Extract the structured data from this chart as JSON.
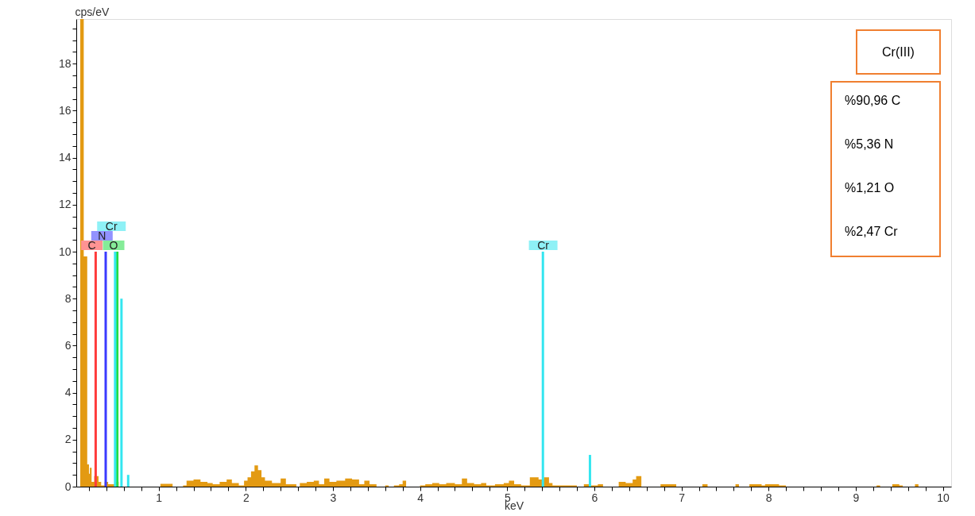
{
  "chart_data": {
    "type": "area",
    "title": "Cr(III)",
    "xlabel": "keV",
    "ylabel": "cps/eV",
    "xlim": [
      0.1,
      10.05
    ],
    "ylim": [
      0,
      19.9
    ],
    "xticks": [
      {
        "value": 0.2,
        "label": null
      },
      {
        "value": 0.4,
        "label": null
      },
      {
        "value": 0.6,
        "label": null
      },
      {
        "value": 0.8,
        "label": null
      },
      1,
      {
        "value": 1.2,
        "label": null
      },
      {
        "value": 1.4,
        "label": null
      },
      {
        "value": 1.6,
        "label": null
      },
      {
        "value": 1.8,
        "label": null
      },
      2,
      {
        "value": 2.2,
        "label": null
      },
      {
        "value": 2.4,
        "label": null
      },
      {
        "value": 2.6,
        "label": null
      },
      {
        "value": 2.8,
        "label": null
      },
      3,
      {
        "value": 3.2,
        "label": null
      },
      {
        "value": 3.4,
        "label": null
      },
      {
        "value": 3.6,
        "label": null
      },
      {
        "value": 3.8,
        "label": null
      },
      4,
      {
        "value": 4.2,
        "label": null
      },
      {
        "value": 4.4,
        "label": null
      },
      {
        "value": 4.6,
        "label": null
      },
      {
        "value": 4.8,
        "label": null
      },
      5,
      {
        "value": 5.2,
        "label": null
      },
      {
        "value": 5.4,
        "label": null
      },
      {
        "value": 5.6,
        "label": null
      },
      {
        "value": 5.8,
        "label": null
      },
      6,
      {
        "value": 6.2,
        "label": null
      },
      {
        "value": 6.4,
        "label": null
      },
      {
        "value": 6.6,
        "label": null
      },
      {
        "value": 6.8,
        "label": null
      },
      7,
      {
        "value": 7.2,
        "label": null
      },
      {
        "value": 7.4,
        "label": null
      },
      {
        "value": 7.6,
        "label": null
      },
      {
        "value": 7.8,
        "label": null
      },
      8,
      {
        "value": 8.2,
        "label": null
      },
      {
        "value": 8.4,
        "label": null
      },
      {
        "value": 8.6,
        "label": null
      },
      {
        "value": 8.8,
        "label": null
      },
      9,
      {
        "value": 9.2,
        "label": null
      },
      {
        "value": 9.4,
        "label": null
      },
      {
        "value": 9.6,
        "label": null
      },
      {
        "value": 9.8,
        "label": null
      },
      10
    ],
    "yticks": [
      0,
      {
        "value": 0.5,
        "label": null
      },
      {
        "value": 1,
        "label": null
      },
      {
        "value": 1.5,
        "label": null
      },
      2,
      {
        "value": 2.5,
        "label": null
      },
      {
        "value": 3,
        "label": null
      },
      {
        "value": 3.5,
        "label": null
      },
      4,
      {
        "value": 4.5,
        "label": null
      },
      {
        "value": 5,
        "label": null
      },
      {
        "value": 5.5,
        "label": null
      },
      6,
      {
        "value": 6.5,
        "label": null
      },
      {
        "value": 7,
        "label": null
      },
      {
        "value": 7.5,
        "label": null
      },
      8,
      {
        "value": 8.5,
        "label": null
      },
      {
        "value": 9,
        "label": null
      },
      {
        "value": 9.5,
        "label": null
      },
      10,
      {
        "value": 10.5,
        "label": null
      },
      {
        "value": 11,
        "label": null
      },
      {
        "value": 11.5,
        "label": null
      },
      12,
      {
        "value": 12.5,
        "label": null
      },
      {
        "value": 13,
        "label": null
      },
      {
        "value": 13.5,
        "label": null
      },
      14,
      {
        "value": 14.5,
        "label": null
      },
      {
        "value": 15,
        "label": null
      },
      {
        "value": 15.5,
        "label": null
      },
      16,
      {
        "value": 16.5,
        "label": null
      },
      {
        "value": 17,
        "label": null
      },
      {
        "value": 17.5,
        "label": null
      },
      18,
      {
        "value": 18.5,
        "label": null
      },
      {
        "value": 19,
        "label": null
      },
      {
        "value": 19.5,
        "label": null
      }
    ],
    "grid": false,
    "series": [
      {
        "color": "#e39a12",
        "x": [
          0.1,
          0.14,
          0.18,
          0.2,
          0.21,
          0.23,
          0.26,
          0.31,
          0.34,
          0.38,
          0.42,
          0.46,
          0.5,
          0.54,
          1.02,
          1.16,
          1.28,
          1.32,
          1.4,
          1.48,
          1.56,
          1.62,
          1.7,
          1.78,
          1.84,
          1.92,
          1.98,
          2.02,
          2.06,
          2.1,
          2.14,
          2.18,
          2.22,
          2.3,
          2.4,
          2.46,
          2.58,
          2.62,
          2.7,
          2.78,
          2.84,
          2.9,
          2.96,
          3.04,
          3.14,
          3.22,
          3.3,
          3.36,
          3.42,
          3.5,
          3.6,
          3.64,
          3.7,
          3.76,
          3.8,
          3.84,
          4.0,
          4.06,
          4.14,
          4.22,
          4.3,
          4.4,
          4.48,
          4.54,
          4.62,
          4.7,
          4.76,
          4.86,
          4.96,
          5.02,
          5.08,
          5.16,
          5.26,
          5.36,
          5.42,
          5.48,
          5.52,
          5.62,
          5.7,
          5.8,
          5.88,
          5.96,
          6.04,
          6.1,
          6.28,
          6.36,
          6.44,
          6.48,
          6.54,
          6.76,
          6.94,
          7.24,
          7.3,
          7.62,
          7.66,
          7.78,
          7.92,
          7.96,
          8.12,
          8.2,
          9.24,
          9.28,
          9.42,
          9.5,
          9.54,
          9.68,
          9.72,
          10.05
        ],
        "values": [
          19.9,
          9.8,
          0.95,
          0.55,
          0.8,
          0.2,
          0.45,
          0.2,
          0.05,
          0.2,
          0.1,
          0.1,
          0.2,
          0,
          0.12,
          0,
          0.05,
          0.25,
          0.3,
          0.2,
          0.15,
          0.1,
          0.2,
          0.3,
          0.15,
          0.05,
          0.25,
          0.4,
          0.65,
          0.9,
          0.7,
          0.4,
          0.25,
          0.15,
          0.35,
          0.1,
          0,
          0.15,
          0.2,
          0.25,
          0.1,
          0.35,
          0.2,
          0.25,
          0.35,
          0.3,
          0.1,
          0.25,
          0.1,
          0,
          0.05,
          0,
          0.05,
          0.1,
          0.25,
          0,
          0.05,
          0.1,
          0.15,
          0.1,
          0.15,
          0.1,
          0.35,
          0.15,
          0.1,
          0.15,
          0.05,
          0.1,
          0.15,
          0.25,
          0.1,
          0.05,
          0.4,
          0.3,
          0.4,
          0.15,
          0.05,
          0.05,
          0.05,
          0,
          0.1,
          0.05,
          0.1,
          0,
          0.2,
          0.15,
          0.3,
          0.45,
          0,
          0.1,
          0,
          0.1,
          0,
          0.1,
          0,
          0.1,
          0.05,
          0.1,
          0.05,
          0,
          0.05,
          0,
          0.1,
          0.05,
          0,
          0.1,
          0,
          0
        ]
      },
      {
        "type": "bar",
        "name": "C",
        "color": "#ff3b3b",
        "x": [
          0.277
        ],
        "values": [
          10
        ]
      },
      {
        "type": "bar",
        "name": "O",
        "color": "#22dd44",
        "x": [
          0.525
        ],
        "values": [
          10
        ]
      },
      {
        "type": "bar",
        "name": "N",
        "color": "#3a3aff",
        "x": [
          0.392
        ],
        "values": [
          10
        ]
      },
      {
        "type": "bar",
        "name": "Cr",
        "color": "#33e6f0",
        "x": [
          0.5,
          0.573,
          0.65,
          5.41,
          5.95
        ],
        "values": [
          10,
          8,
          0.5,
          10,
          1.35
        ]
      }
    ],
    "annotations": [
      "%90,96 C",
      "%5,36 N",
      "%1,21 O",
      "%2,47 Cr"
    ]
  }
}
